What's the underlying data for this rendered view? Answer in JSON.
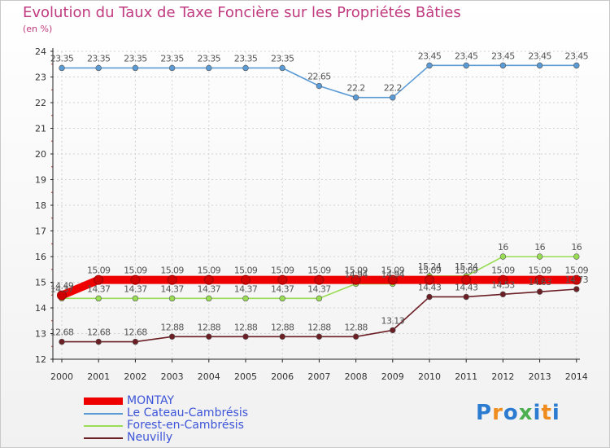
{
  "chart_data": {
    "type": "line",
    "title": "Evolution du Taux de Taxe Foncière sur les Propriétés Bâties",
    "subtitle": "(en %)",
    "xlabel": "",
    "ylabel": "",
    "ylim": [
      12,
      24
    ],
    "y_ticks": [
      "12",
      "13",
      "14",
      "15",
      "16",
      "17",
      "18",
      "19",
      "20",
      "21",
      "22",
      "23",
      "24"
    ],
    "x": [
      "2000",
      "2001",
      "2002",
      "2003",
      "2004",
      "2005",
      "2006",
      "2007",
      "2008",
      "2009",
      "2010",
      "2011",
      "2012",
      "2013",
      "2014"
    ],
    "legend_position": "bottom-left",
    "series": [
      {
        "name": "MONTAY",
        "color": "#ee0000",
        "values": [
          14.49,
          15.09,
          15.09,
          15.09,
          15.09,
          15.09,
          15.09,
          15.09,
          15.09,
          15.09,
          15.09,
          15.09,
          15.09,
          15.09,
          15.09
        ],
        "labels": [
          "14.49",
          "15.09",
          "15.09",
          "15.09",
          "15.09",
          "15.09",
          "15.09",
          "15.09",
          "15.09",
          "15.09",
          "15.09",
          "15.09",
          "15.09",
          "15.09",
          "15.09"
        ]
      },
      {
        "name": "Le Cateau-Cambrésis",
        "color": "#5b9bd5",
        "values": [
          23.35,
          23.35,
          23.35,
          23.35,
          23.35,
          23.35,
          23.35,
          22.65,
          22.2,
          22.2,
          23.45,
          23.45,
          23.45,
          23.45,
          23.45
        ],
        "labels": [
          "23.35",
          "23.35",
          "23.35",
          "23.35",
          "23.35",
          "23.35",
          "23.35",
          "22.65",
          "22.2",
          "22.2",
          "23.45",
          "23.45",
          "23.45",
          "23.45",
          "23.45"
        ]
      },
      {
        "name": "Forest-en-Cambrésis",
        "color": "#99dd55",
        "values": [
          14.37,
          14.37,
          14.37,
          14.37,
          14.37,
          14.37,
          14.37,
          14.37,
          14.94,
          14.94,
          15.24,
          15.24,
          16,
          16,
          16
        ],
        "labels": [
          "14.37",
          "14.37",
          "14.37",
          "14.37",
          "14.37",
          "14.37",
          "14.37",
          "14.37",
          "14.94",
          "14.94",
          "15.24",
          "15.24",
          "16",
          "16",
          "16"
        ]
      },
      {
        "name": "Neuvilly",
        "color": "#6b1e24",
        "values": [
          12.68,
          12.68,
          12.68,
          12.88,
          12.88,
          12.88,
          12.88,
          12.88,
          12.88,
          13.13,
          14.43,
          14.43,
          14.53,
          14.63,
          14.73
        ],
        "labels": [
          "12.68",
          "12.68",
          "12.68",
          "12.88",
          "12.88",
          "12.88",
          "12.88",
          "12.88",
          "12.88",
          "13.13",
          "14.43",
          "14.43",
          "14.53",
          "14.63",
          "14.73"
        ]
      }
    ]
  },
  "logo": {
    "letters": [
      "P",
      "r",
      "o",
      "x",
      "i",
      "t",
      "i"
    ],
    "colors": [
      "#2b7bd1",
      "#f08c1e",
      "#2b7bd1",
      "#4caf50",
      "#2b7bd1",
      "#f08c1e",
      "#2b7bd1"
    ]
  }
}
